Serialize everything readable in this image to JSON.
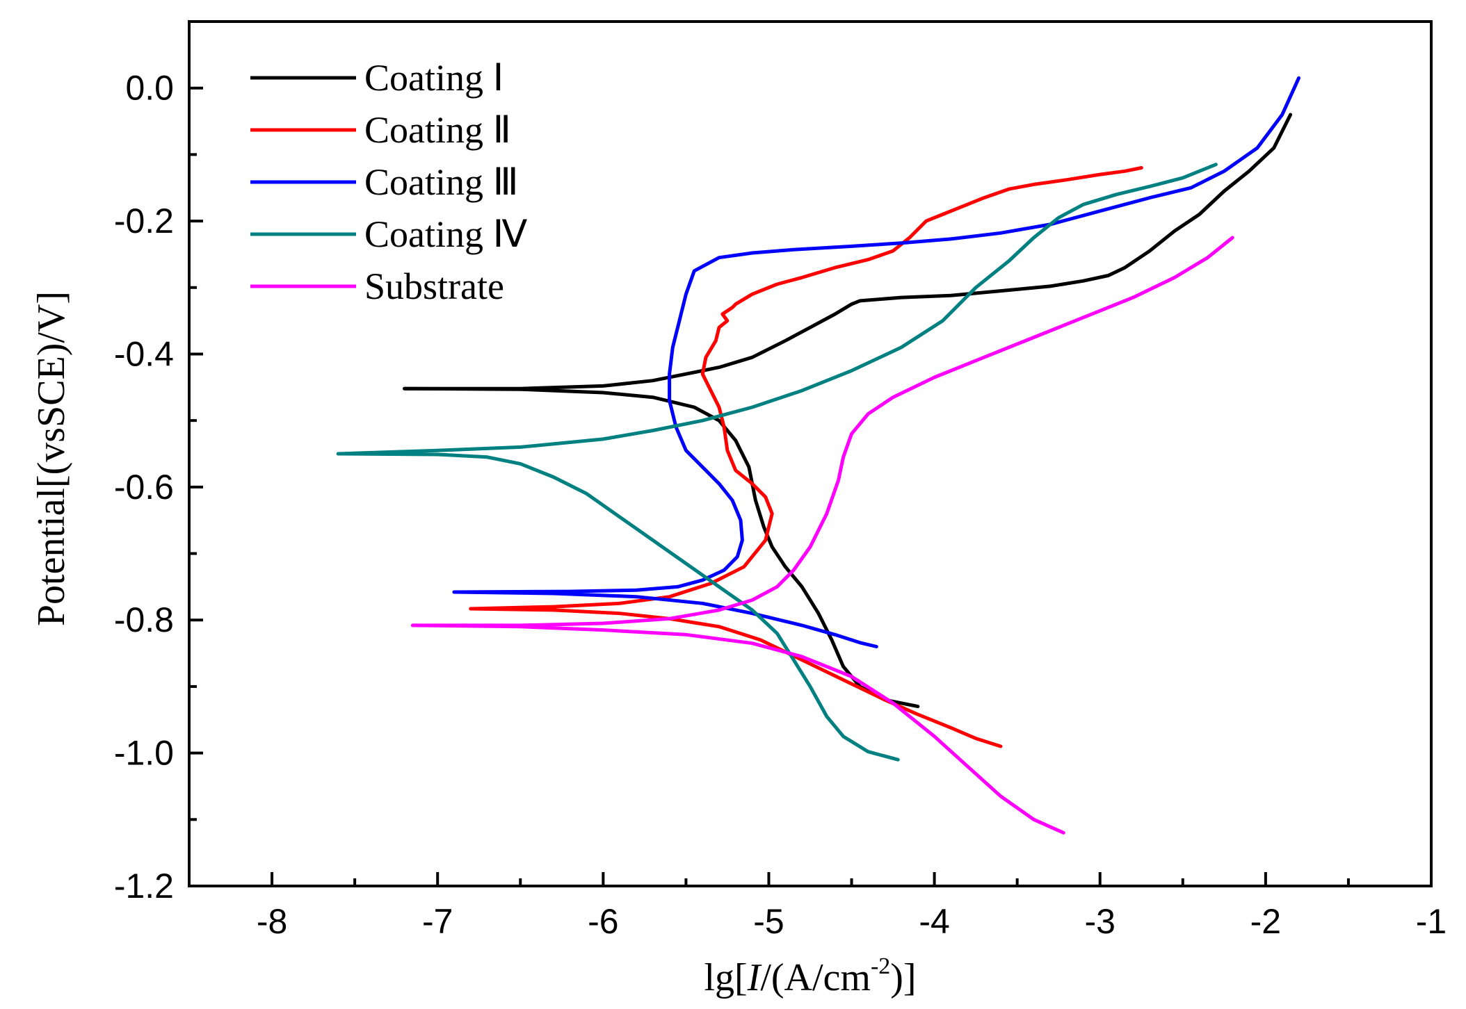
{
  "chart_data": {
    "type": "line",
    "title": "",
    "xlabel": "lg[I/(A/cm-2)]",
    "xlabel_parts": {
      "prefix": "lg[",
      "italic": "I",
      "middle": "/(A/cm",
      "superscript": "-2",
      "suffix": ")]"
    },
    "ylabel": "Potential[(vsSCE)/V]",
    "xlim": [
      -8.5,
      -1
    ],
    "ylim": [
      -1.2,
      0.1
    ],
    "x_ticks": [
      -8,
      -7,
      -6,
      -5,
      -4,
      -3,
      -2,
      -1
    ],
    "x_tick_labels": [
      "-8",
      "-7",
      "-6",
      "-5",
      "-4",
      "-3",
      "-2",
      "-1"
    ],
    "y_ticks": [
      0.0,
      -0.2,
      -0.4,
      -0.6,
      -0.8,
      -1.0,
      -1.2
    ],
    "y_tick_labels": [
      "0.0",
      "-0.2",
      "-0.4",
      "-0.6",
      "-0.8",
      "-1.0",
      "-1.2"
    ],
    "grid": false,
    "legend_position": "top-left",
    "series": [
      {
        "name": "Coating Ⅰ",
        "color": "#000000",
        "x": [
          -7.2,
          -6.5,
          -6.0,
          -5.7,
          -5.5,
          -5.3,
          -5.1,
          -4.9,
          -4.75,
          -4.6,
          -4.5,
          -4.45,
          -4.2,
          -3.9,
          -3.6,
          -3.3,
          -3.1,
          -2.95,
          -2.85,
          -2.7,
          -2.55,
          -2.4,
          -2.25,
          -2.1,
          -1.95,
          -1.85
        ],
        "y": [
          -0.452,
          -0.452,
          -0.448,
          -0.44,
          -0.43,
          -0.42,
          -0.405,
          -0.38,
          -0.36,
          -0.34,
          -0.325,
          -0.32,
          -0.315,
          -0.312,
          -0.305,
          -0.298,
          -0.29,
          -0.282,
          -0.27,
          -0.245,
          -0.215,
          -0.19,
          -0.155,
          -0.125,
          -0.09,
          -0.04
        ]
      },
      {
        "name": "Coating Ⅰ",
        "color": "#000000",
        "x": [
          -7.2,
          -6.5,
          -6.0,
          -5.7,
          -5.45,
          -5.3,
          -5.2,
          -5.12,
          -5.08,
          -5.03,
          -4.98,
          -4.9,
          -4.8,
          -4.7,
          -4.62,
          -4.55,
          -4.45,
          -4.3,
          -4.1
        ],
        "y": [
          -0.452,
          -0.453,
          -0.458,
          -0.465,
          -0.48,
          -0.5,
          -0.53,
          -0.57,
          -0.62,
          -0.66,
          -0.69,
          -0.72,
          -0.75,
          -0.79,
          -0.83,
          -0.87,
          -0.9,
          -0.92,
          -0.93
        ]
      },
      {
        "name": "Coating Ⅱ",
        "color": "#ff0000",
        "x": [
          -6.8,
          -6.3,
          -5.9,
          -5.6,
          -5.35,
          -5.15,
          -5.02,
          -4.98,
          -5.02,
          -5.1,
          -5.2,
          -5.25,
          -5.27,
          -5.3,
          -5.35,
          -5.4,
          -5.38,
          -5.32,
          -5.3,
          -5.25,
          -5.28,
          -5.22,
          -5.2,
          -5.1,
          -4.95,
          -4.8,
          -4.6,
          -4.4,
          -4.25,
          -4.15,
          -4.05,
          -3.95,
          -3.85,
          -3.7,
          -3.55,
          -3.4,
          -3.2,
          -3.0,
          -2.85,
          -2.75
        ],
        "y": [
          -0.783,
          -0.78,
          -0.775,
          -0.765,
          -0.745,
          -0.72,
          -0.68,
          -0.64,
          -0.615,
          -0.595,
          -0.575,
          -0.545,
          -0.51,
          -0.48,
          -0.455,
          -0.43,
          -0.405,
          -0.38,
          -0.36,
          -0.35,
          -0.34,
          -0.33,
          -0.325,
          -0.31,
          -0.295,
          -0.285,
          -0.27,
          -0.258,
          -0.245,
          -0.225,
          -0.2,
          -0.19,
          -0.18,
          -0.165,
          -0.152,
          -0.145,
          -0.138,
          -0.13,
          -0.125,
          -0.12
        ]
      },
      {
        "name": "Coating Ⅱ",
        "color": "#ff0000",
        "x": [
          -6.8,
          -6.3,
          -5.9,
          -5.6,
          -5.3,
          -5.05,
          -4.8,
          -4.55,
          -4.3,
          -4.1,
          -3.9,
          -3.75,
          -3.6
        ],
        "y": [
          -0.783,
          -0.785,
          -0.79,
          -0.798,
          -0.81,
          -0.83,
          -0.86,
          -0.89,
          -0.92,
          -0.942,
          -0.962,
          -0.978,
          -0.99
        ]
      },
      {
        "name": "Coating Ⅲ",
        "color": "#0000ff",
        "x": [
          -6.9,
          -6.2,
          -5.8,
          -5.55,
          -5.4,
          -5.27,
          -5.19,
          -5.16,
          -5.17,
          -5.22,
          -5.3,
          -5.4,
          -5.5,
          -5.56,
          -5.6,
          -5.6,
          -5.58,
          -5.54,
          -5.5,
          -5.45,
          -5.3,
          -5.1,
          -4.85,
          -4.5,
          -4.2,
          -3.9,
          -3.6,
          -3.3,
          -3.0,
          -2.7,
          -2.45,
          -2.25,
          -2.05,
          -1.9,
          -1.8
        ],
        "y": [
          -0.758,
          -0.757,
          -0.755,
          -0.75,
          -0.74,
          -0.725,
          -0.705,
          -0.68,
          -0.65,
          -0.62,
          -0.595,
          -0.57,
          -0.545,
          -0.51,
          -0.47,
          -0.43,
          -0.39,
          -0.35,
          -0.31,
          -0.275,
          -0.255,
          -0.248,
          -0.243,
          -0.238,
          -0.233,
          -0.227,
          -0.218,
          -0.205,
          -0.185,
          -0.165,
          -0.15,
          -0.125,
          -0.09,
          -0.04,
          0.015
        ]
      },
      {
        "name": "Coating Ⅲ",
        "color": "#0000ff",
        "x": [
          -6.9,
          -6.3,
          -5.8,
          -5.4,
          -5.1,
          -4.8,
          -4.6,
          -4.45,
          -4.35
        ],
        "y": [
          -0.758,
          -0.76,
          -0.765,
          -0.775,
          -0.79,
          -0.808,
          -0.822,
          -0.834,
          -0.84
        ]
      },
      {
        "name": "Coating Ⅳ",
        "color": "#008080",
        "x": [
          -7.6,
          -7.0,
          -6.5,
          -6.0,
          -5.7,
          -5.4,
          -5.1,
          -4.8,
          -4.5,
          -4.2,
          -3.95,
          -3.75,
          -3.55,
          -3.4,
          -3.25,
          -3.1,
          -2.9,
          -2.7,
          -2.5,
          -2.3
        ],
        "y": [
          -0.55,
          -0.545,
          -0.54,
          -0.528,
          -0.515,
          -0.5,
          -0.48,
          -0.455,
          -0.425,
          -0.39,
          -0.35,
          -0.3,
          -0.26,
          -0.225,
          -0.195,
          -0.175,
          -0.16,
          -0.148,
          -0.135,
          -0.115
        ]
      },
      {
        "name": "Coating Ⅳ",
        "color": "#008080",
        "x": [
          -7.6,
          -7.0,
          -6.7,
          -6.5,
          -6.3,
          -6.1,
          -5.9,
          -5.7,
          -5.5,
          -5.3,
          -5.1,
          -4.95,
          -4.85,
          -4.75,
          -4.65,
          -4.55,
          -4.4,
          -4.22
        ],
        "y": [
          -0.55,
          -0.551,
          -0.555,
          -0.565,
          -0.585,
          -0.61,
          -0.645,
          -0.68,
          -0.715,
          -0.75,
          -0.785,
          -0.82,
          -0.86,
          -0.9,
          -0.945,
          -0.975,
          -0.998,
          -1.01
        ]
      },
      {
        "name": "Substrate",
        "color": "#ff00ff",
        "x": [
          -7.15,
          -6.5,
          -6.0,
          -5.6,
          -5.3,
          -5.1,
          -4.95,
          -4.85,
          -4.75,
          -4.65,
          -4.58,
          -4.55,
          -4.5,
          -4.4,
          -4.25,
          -4.0,
          -3.7,
          -3.4,
          -3.1,
          -2.8,
          -2.55,
          -2.35,
          -2.2
        ],
        "y": [
          -0.808,
          -0.808,
          -0.805,
          -0.798,
          -0.785,
          -0.77,
          -0.75,
          -0.725,
          -0.69,
          -0.64,
          -0.59,
          -0.555,
          -0.52,
          -0.49,
          -0.465,
          -0.435,
          -0.405,
          -0.375,
          -0.345,
          -0.315,
          -0.285,
          -0.255,
          -0.225
        ]
      },
      {
        "name": "Substrate",
        "color": "#ff00ff",
        "x": [
          -7.15,
          -6.5,
          -6.0,
          -5.5,
          -5.1,
          -4.8,
          -4.5,
          -4.25,
          -4.0,
          -3.8,
          -3.6,
          -3.4,
          -3.22
        ],
        "y": [
          -0.808,
          -0.81,
          -0.815,
          -0.822,
          -0.835,
          -0.855,
          -0.885,
          -0.925,
          -0.975,
          -1.02,
          -1.065,
          -1.1,
          -1.12
        ]
      }
    ],
    "legend": [
      {
        "label": "Coating  Ⅰ",
        "color": "#000000"
      },
      {
        "label": "Coating  Ⅱ",
        "color": "#ff0000"
      },
      {
        "label": "Coating Ⅲ",
        "color": "#0000ff"
      },
      {
        "label": "Coating Ⅳ",
        "color": "#008080"
      },
      {
        "label": "Substrate",
        "color": "#ff00ff"
      }
    ]
  }
}
